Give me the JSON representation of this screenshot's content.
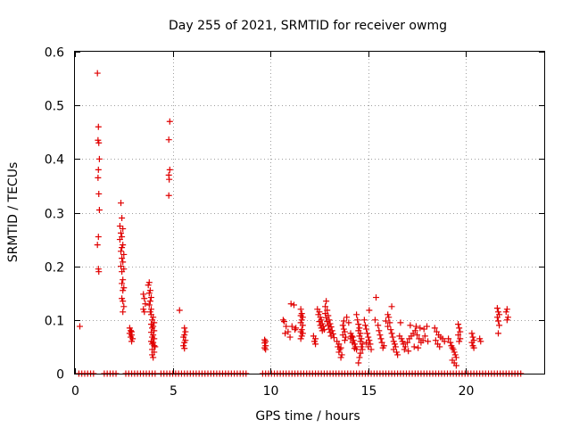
{
  "chart_data": {
    "type": "scatter",
    "title": "Day 255 of 2021, SRMTID for receiver owmg",
    "xlabel": "GPS time / hours",
    "ylabel": "SRMTID / TECUs",
    "xlim": [
      0,
      24
    ],
    "ylim": [
      0,
      0.6
    ],
    "x_ticks": [
      0,
      5,
      10,
      15,
      20
    ],
    "y_ticks": [
      0,
      0.1,
      0.2,
      0.3,
      0.4,
      0.5,
      0.6
    ],
    "x_tick_labels": [
      "0",
      "5",
      "10",
      "15",
      "20"
    ],
    "y_tick_labels": [
      "0",
      "0.1",
      "0.2",
      "0.3",
      "0.4",
      "0.5",
      "0.6"
    ],
    "grid": true,
    "marker": "+",
    "color": "#e00000",
    "series": [
      {
        "name": "SRMTID",
        "points": [
          [
            0.25,
            0.088
          ],
          [
            1.15,
            0.56
          ],
          [
            1.2,
            0.46
          ],
          [
            1.18,
            0.435
          ],
          [
            1.22,
            0.43
          ],
          [
            1.25,
            0.4
          ],
          [
            1.2,
            0.38
          ],
          [
            1.18,
            0.365
          ],
          [
            1.22,
            0.335
          ],
          [
            1.25,
            0.305
          ],
          [
            1.2,
            0.255
          ],
          [
            1.15,
            0.24
          ],
          [
            1.2,
            0.195
          ],
          [
            1.22,
            0.19
          ],
          [
            2.35,
            0.318
          ],
          [
            2.4,
            0.29
          ],
          [
            2.3,
            0.275
          ],
          [
            2.45,
            0.27
          ],
          [
            2.35,
            0.262
          ],
          [
            2.4,
            0.255
          ],
          [
            2.3,
            0.25
          ],
          [
            2.45,
            0.24
          ],
          [
            2.4,
            0.235
          ],
          [
            2.35,
            0.228
          ],
          [
            2.5,
            0.222
          ],
          [
            2.4,
            0.215
          ],
          [
            2.45,
            0.208
          ],
          [
            2.35,
            0.2
          ],
          [
            2.5,
            0.195
          ],
          [
            2.4,
            0.19
          ],
          [
            2.45,
            0.175
          ],
          [
            2.4,
            0.168
          ],
          [
            2.5,
            0.16
          ],
          [
            2.45,
            0.155
          ],
          [
            2.4,
            0.14
          ],
          [
            2.45,
            0.135
          ],
          [
            2.5,
            0.125
          ],
          [
            2.45,
            0.115
          ],
          [
            2.8,
            0.085
          ],
          [
            2.85,
            0.08
          ],
          [
            2.9,
            0.078
          ],
          [
            2.8,
            0.075
          ],
          [
            2.9,
            0.072
          ],
          [
            2.85,
            0.068
          ],
          [
            2.95,
            0.065
          ],
          [
            2.9,
            0.06
          ],
          [
            3.5,
            0.148
          ],
          [
            3.55,
            0.14
          ],
          [
            3.6,
            0.13
          ],
          [
            3.5,
            0.12
          ],
          [
            3.55,
            0.115
          ],
          [
            3.8,
            0.17
          ],
          [
            3.75,
            0.165
          ],
          [
            3.85,
            0.155
          ],
          [
            3.8,
            0.15
          ],
          [
            3.9,
            0.142
          ],
          [
            3.85,
            0.135
          ],
          [
            3.8,
            0.128
          ],
          [
            3.9,
            0.12
          ],
          [
            3.85,
            0.115
          ],
          [
            3.9,
            0.11
          ],
          [
            4.0,
            0.105
          ],
          [
            3.95,
            0.1
          ],
          [
            4.05,
            0.095
          ],
          [
            3.9,
            0.092
          ],
          [
            4.0,
            0.088
          ],
          [
            3.95,
            0.085
          ],
          [
            4.05,
            0.08
          ],
          [
            3.9,
            0.077
          ],
          [
            4.0,
            0.072
          ],
          [
            3.95,
            0.068
          ],
          [
            4.05,
            0.065
          ],
          [
            3.9,
            0.06
          ],
          [
            4.0,
            0.058
          ],
          [
            3.95,
            0.055
          ],
          [
            4.05,
            0.052
          ],
          [
            4.1,
            0.05
          ],
          [
            3.95,
            0.045
          ],
          [
            4.05,
            0.04
          ],
          [
            3.95,
            0.035
          ],
          [
            4.0,
            0.03
          ],
          [
            4.85,
            0.47
          ],
          [
            4.8,
            0.436
          ],
          [
            4.85,
            0.38
          ],
          [
            4.8,
            0.37
          ],
          [
            4.82,
            0.362
          ],
          [
            4.8,
            0.332
          ],
          [
            5.35,
            0.118
          ],
          [
            5.6,
            0.085
          ],
          [
            5.65,
            0.078
          ],
          [
            5.6,
            0.072
          ],
          [
            5.55,
            0.068
          ],
          [
            5.65,
            0.062
          ],
          [
            5.6,
            0.058
          ],
          [
            5.55,
            0.052
          ],
          [
            5.6,
            0.047
          ],
          [
            9.7,
            0.063
          ],
          [
            9.75,
            0.06
          ],
          [
            9.7,
            0.057
          ],
          [
            9.75,
            0.052
          ],
          [
            9.7,
            0.048
          ],
          [
            9.75,
            0.045
          ],
          [
            10.65,
            0.1
          ],
          [
            10.7,
            0.097
          ],
          [
            10.8,
            0.088
          ],
          [
            10.75,
            0.075
          ],
          [
            10.9,
            0.078
          ],
          [
            11.0,
            0.068
          ],
          [
            11.05,
            0.13
          ],
          [
            11.2,
            0.128
          ],
          [
            11.1,
            0.088
          ],
          [
            11.3,
            0.085
          ],
          [
            11.25,
            0.082
          ],
          [
            11.55,
            0.12
          ],
          [
            11.6,
            0.112
          ],
          [
            11.55,
            0.108
          ],
          [
            11.65,
            0.105
          ],
          [
            11.6,
            0.1
          ],
          [
            11.55,
            0.095
          ],
          [
            11.65,
            0.09
          ],
          [
            11.6,
            0.082
          ],
          [
            11.55,
            0.078
          ],
          [
            11.65,
            0.075
          ],
          [
            11.6,
            0.07
          ],
          [
            11.55,
            0.065
          ],
          [
            12.2,
            0.07
          ],
          [
            12.3,
            0.065
          ],
          [
            12.25,
            0.06
          ],
          [
            12.3,
            0.055
          ],
          [
            12.4,
            0.12
          ],
          [
            12.5,
            0.115
          ],
          [
            12.45,
            0.11
          ],
          [
            12.55,
            0.105
          ],
          [
            12.6,
            0.1
          ],
          [
            12.5,
            0.097
          ],
          [
            12.65,
            0.093
          ],
          [
            12.55,
            0.09
          ],
          [
            12.7,
            0.088
          ],
          [
            12.6,
            0.085
          ],
          [
            12.75,
            0.082
          ],
          [
            12.65,
            0.08
          ],
          [
            12.8,
            0.125
          ],
          [
            12.85,
            0.135
          ],
          [
            12.9,
            0.118
          ],
          [
            12.8,
            0.112
          ],
          [
            12.95,
            0.108
          ],
          [
            12.85,
            0.104
          ],
          [
            13.0,
            0.1
          ],
          [
            12.9,
            0.097
          ],
          [
            13.05,
            0.093
          ],
          [
            12.95,
            0.09
          ],
          [
            13.1,
            0.087
          ],
          [
            13.0,
            0.083
          ],
          [
            13.15,
            0.08
          ],
          [
            13.05,
            0.077
          ],
          [
            13.2,
            0.074
          ],
          [
            13.1,
            0.07
          ],
          [
            13.25,
            0.067
          ],
          [
            13.4,
            0.06
          ],
          [
            13.5,
            0.055
          ],
          [
            13.45,
            0.05
          ],
          [
            13.6,
            0.048
          ],
          [
            13.55,
            0.045
          ],
          [
            13.5,
            0.04
          ],
          [
            13.65,
            0.035
          ],
          [
            13.6,
            0.03
          ],
          [
            13.7,
            0.09
          ],
          [
            13.75,
            0.083
          ],
          [
            13.8,
            0.078
          ],
          [
            13.7,
            0.072
          ],
          [
            13.85,
            0.068
          ],
          [
            13.8,
            0.062
          ],
          [
            13.75,
            0.098
          ],
          [
            13.9,
            0.105
          ],
          [
            14.0,
            0.095
          ],
          [
            14.1,
            0.075
          ],
          [
            14.15,
            0.07
          ],
          [
            14.2,
            0.068
          ],
          [
            14.1,
            0.065
          ],
          [
            14.25,
            0.062
          ],
          [
            14.2,
            0.058
          ],
          [
            14.3,
            0.055
          ],
          [
            14.35,
            0.05
          ],
          [
            14.3,
            0.047
          ],
          [
            14.4,
            0.045
          ],
          [
            14.4,
            0.11
          ],
          [
            14.45,
            0.1
          ],
          [
            14.5,
            0.092
          ],
          [
            14.55,
            0.085
          ],
          [
            14.5,
            0.08
          ],
          [
            14.6,
            0.075
          ],
          [
            14.55,
            0.07
          ],
          [
            14.65,
            0.065
          ],
          [
            14.6,
            0.06
          ],
          [
            14.7,
            0.055
          ],
          [
            14.65,
            0.05
          ],
          [
            14.7,
            0.045
          ],
          [
            14.6,
            0.038
          ],
          [
            14.55,
            0.03
          ],
          [
            14.5,
            0.02
          ],
          [
            14.8,
            0.1
          ],
          [
            14.85,
            0.09
          ],
          [
            14.9,
            0.083
          ],
          [
            14.95,
            0.075
          ],
          [
            15.0,
            0.068
          ],
          [
            15.05,
            0.062
          ],
          [
            14.9,
            0.058
          ],
          [
            15.1,
            0.055
          ],
          [
            15.0,
            0.05
          ],
          [
            15.15,
            0.045
          ],
          [
            15.05,
            0.118
          ],
          [
            15.4,
            0.142
          ],
          [
            15.35,
            0.1
          ],
          [
            15.5,
            0.09
          ],
          [
            15.55,
            0.08
          ],
          [
            15.6,
            0.072
          ],
          [
            15.65,
            0.065
          ],
          [
            15.7,
            0.058
          ],
          [
            15.8,
            0.052
          ],
          [
            15.75,
            0.048
          ],
          [
            15.9,
            0.098
          ],
          [
            16.0,
            0.11
          ],
          [
            16.05,
            0.105
          ],
          [
            16.1,
            0.095
          ],
          [
            16.0,
            0.088
          ],
          [
            16.15,
            0.082
          ],
          [
            16.2,
            0.075
          ],
          [
            16.25,
            0.068
          ],
          [
            16.3,
            0.06
          ],
          [
            16.35,
            0.055
          ],
          [
            16.4,
            0.05
          ],
          [
            16.2,
            0.125
          ],
          [
            16.3,
            0.045
          ],
          [
            16.45,
            0.04
          ],
          [
            16.5,
            0.035
          ],
          [
            16.6,
            0.07
          ],
          [
            16.7,
            0.065
          ],
          [
            16.75,
            0.06
          ],
          [
            16.8,
            0.055
          ],
          [
            16.9,
            0.05
          ],
          [
            17.0,
            0.058
          ],
          [
            17.1,
            0.065
          ],
          [
            17.2,
            0.07
          ],
          [
            17.3,
            0.075
          ],
          [
            17.4,
            0.08
          ],
          [
            17.5,
            0.072
          ],
          [
            17.6,
            0.065
          ],
          [
            17.7,
            0.058
          ],
          [
            17.8,
            0.062
          ],
          [
            17.9,
            0.07
          ],
          [
            18.0,
            0.088
          ],
          [
            16.65,
            0.095
          ],
          [
            17.15,
            0.09
          ],
          [
            17.45,
            0.088
          ],
          [
            17.65,
            0.085
          ],
          [
            17.85,
            0.083
          ],
          [
            18.05,
            0.06
          ],
          [
            17.35,
            0.05
          ],
          [
            17.55,
            0.048
          ],
          [
            16.85,
            0.045
          ],
          [
            17.05,
            0.042
          ],
          [
            18.4,
            0.085
          ],
          [
            18.5,
            0.078
          ],
          [
            18.6,
            0.072
          ],
          [
            18.7,
            0.068
          ],
          [
            18.8,
            0.065
          ],
          [
            18.9,
            0.06
          ],
          [
            18.45,
            0.062
          ],
          [
            18.55,
            0.055
          ],
          [
            18.65,
            0.05
          ],
          [
            19.1,
            0.065
          ],
          [
            19.2,
            0.058
          ],
          [
            19.25,
            0.052
          ],
          [
            19.3,
            0.048
          ],
          [
            19.35,
            0.045
          ],
          [
            19.4,
            0.04
          ],
          [
            19.45,
            0.035
          ],
          [
            19.5,
            0.03
          ],
          [
            19.3,
            0.025
          ],
          [
            19.4,
            0.02
          ],
          [
            19.5,
            0.015
          ],
          [
            19.6,
            0.092
          ],
          [
            19.65,
            0.085
          ],
          [
            19.7,
            0.078
          ],
          [
            19.6,
            0.072
          ],
          [
            19.7,
            0.065
          ],
          [
            19.65,
            0.06
          ],
          [
            20.3,
            0.075
          ],
          [
            20.35,
            0.068
          ],
          [
            20.4,
            0.062
          ],
          [
            20.3,
            0.058
          ],
          [
            20.35,
            0.052
          ],
          [
            20.4,
            0.048
          ],
          [
            20.7,
            0.065
          ],
          [
            20.75,
            0.06
          ],
          [
            21.6,
            0.122
          ],
          [
            21.65,
            0.115
          ],
          [
            21.7,
            0.11
          ],
          [
            21.6,
            0.105
          ],
          [
            21.65,
            0.098
          ],
          [
            21.7,
            0.09
          ],
          [
            21.65,
            0.075
          ],
          [
            22.1,
            0.12
          ],
          [
            22.05,
            0.115
          ],
          [
            22.15,
            0.105
          ],
          [
            22.1,
            0.1
          ]
        ],
        "zero_intervals": [
          [
            0.2,
            1.0
          ],
          [
            1.5,
            2.2
          ],
          [
            2.6,
            4.2
          ],
          [
            4.4,
            5.8
          ],
          [
            5.9,
            8.8
          ],
          [
            9.6,
            22.8
          ]
        ],
        "zero_spacing_hours": 0.15
      }
    ]
  }
}
